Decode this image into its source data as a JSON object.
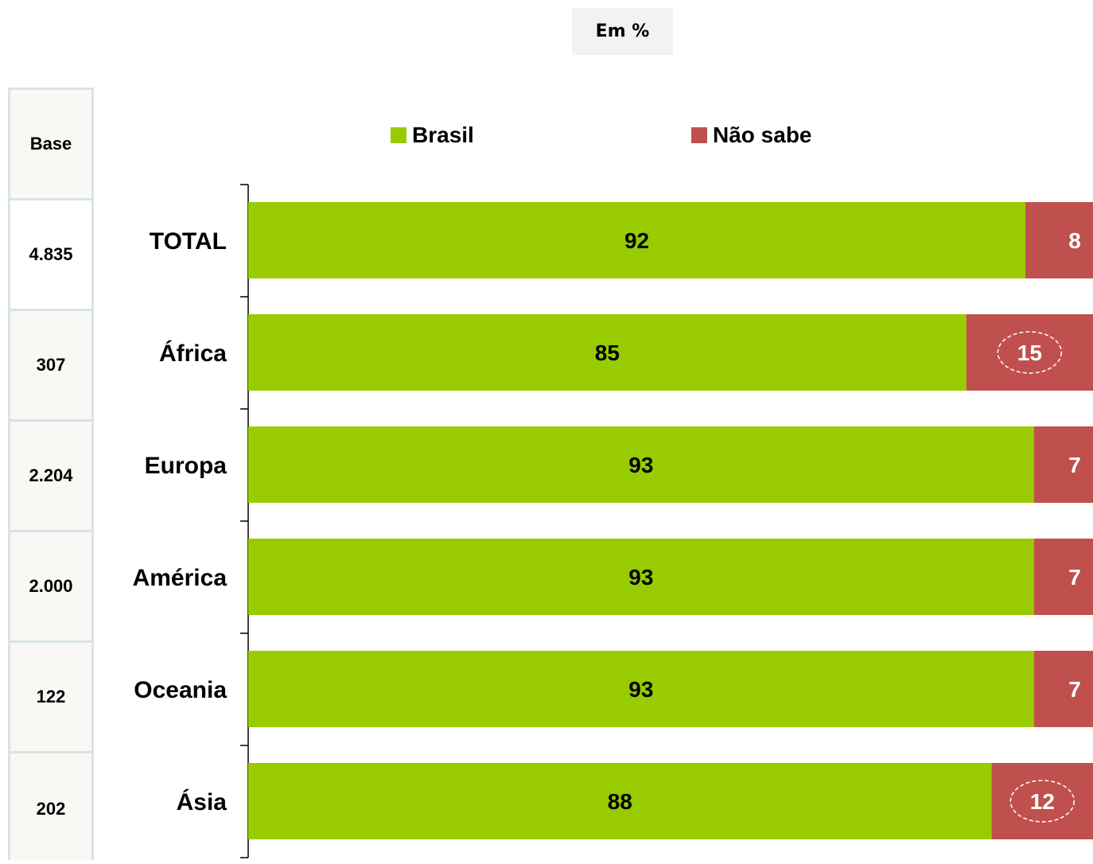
{
  "unit_label": "Em %",
  "base": {
    "header": "Base",
    "values": [
      "4.835",
      "307",
      "2.204",
      "2.000",
      "122",
      "202"
    ]
  },
  "colors": {
    "brasil": "#99cc00",
    "nao_sabe": "#c0504d",
    "base_border": "#d7e4e6"
  },
  "chart_data": {
    "type": "bar",
    "orientation": "horizontal",
    "stacked": true,
    "title": "",
    "xlabel": "",
    "ylabel": "",
    "xlim": [
      0,
      100
    ],
    "legend_position": "top",
    "grid": false,
    "categories": [
      "TOTAL",
      "África",
      "Europa",
      "América",
      "Oceania",
      "Ásia"
    ],
    "series": [
      {
        "name": "Brasil",
        "color": "#99cc00",
        "values": [
          92,
          85,
          93,
          93,
          93,
          88
        ]
      },
      {
        "name": "Não sabe",
        "color": "#c0504d",
        "values": [
          8,
          15,
          7,
          7,
          7,
          12
        ]
      }
    ],
    "highlighted": [
      {
        "category": "África",
        "series": "Não sabe"
      },
      {
        "category": "Ásia",
        "series": "Não sabe"
      }
    ]
  }
}
